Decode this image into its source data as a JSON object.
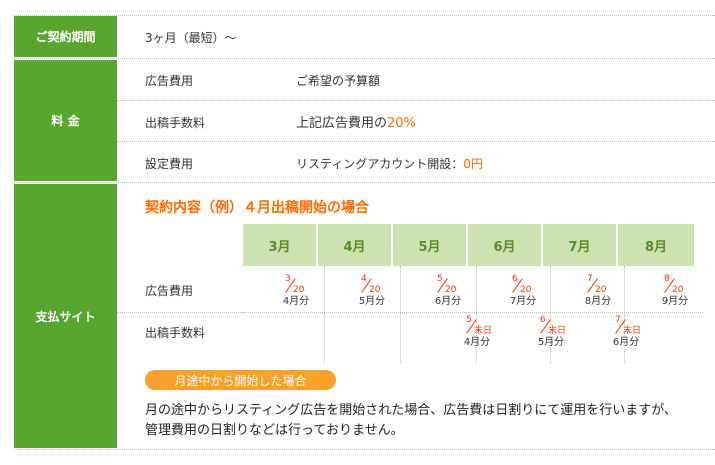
{
  "contract_period": {
    "header": "ご契約期間",
    "value": "3ヶ月（最短）〜"
  },
  "fees": {
    "header": "料 金",
    "rows": [
      {
        "label": "広告費用",
        "value": "ご希望の予算額",
        "highlight": ""
      },
      {
        "label": "出稿手数料",
        "value": "上記広告費用の",
        "highlight": "20%"
      },
      {
        "label": "設定費用",
        "value": "リスティングアカウント開設：",
        "highlight": "0円"
      }
    ]
  },
  "payment": {
    "header": "支払サイト",
    "title": "契約内容（例）４月出稿開始の場合",
    "months": [
      "3月",
      "4月",
      "5月",
      "6月",
      "7月",
      "8月"
    ],
    "rows": [
      {
        "label": "広告費用",
        "entries": [
          {
            "num": "3",
            "den": "20",
            "label": "4月分"
          },
          {
            "num": "4",
            "den": "20",
            "label": "5月分"
          },
          {
            "num": "5",
            "den": "20",
            "label": "6月分"
          },
          {
            "num": "6",
            "den": "20",
            "label": "7月分"
          },
          {
            "num": "7",
            "den": "20",
            "label": "8月分"
          },
          {
            "num": "8",
            "den": "20",
            "label": "9月分"
          }
        ]
      },
      {
        "label": "出稿手数料",
        "entries": [
          {
            "num": "5",
            "den": "末日",
            "label": "4月分"
          },
          {
            "num": "6",
            "den": "末日",
            "label": "5月分"
          },
          {
            "num": "7",
            "den": "末日",
            "label": "6月分"
          }
        ]
      }
    ],
    "pill": "月途中から開始した場合",
    "note": "月の途中からリスティング広告を開始された場合、広告費は日割りにて運用を行いますが、管理費用の日割りなどは行っておりません。"
  },
  "colors": {
    "green": "#58a52f",
    "light_green": "#cce3b1",
    "orange": "#ff6a00",
    "pill": "#f7a12a"
  }
}
